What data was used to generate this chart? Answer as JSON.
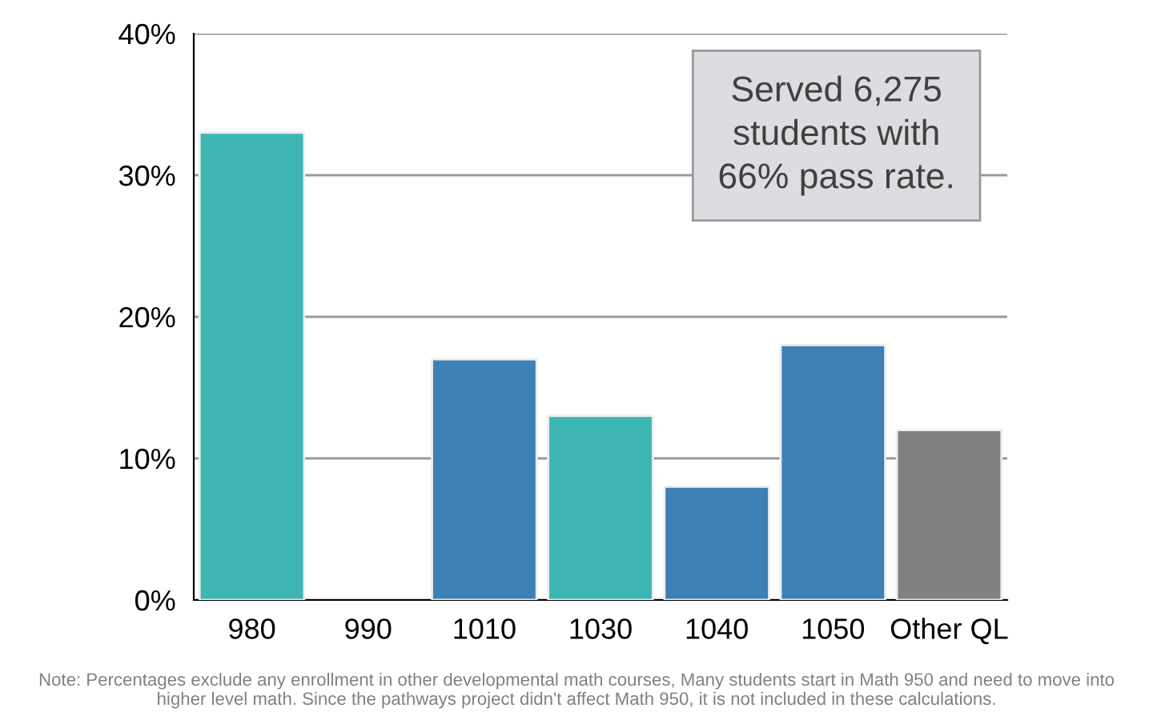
{
  "chart_data": {
    "type": "bar",
    "categories": [
      "980",
      "990",
      "1010",
      "1030",
      "1040",
      "1050",
      "Other QL"
    ],
    "values": [
      33,
      null,
      17,
      13,
      8,
      18,
      12
    ],
    "colors": [
      "#3db5b3",
      null,
      "#3d80b5",
      "#3db5b3",
      "#3d80b5",
      "#3d80b5",
      "#808080"
    ],
    "ylim": [
      0,
      40
    ],
    "yticks": [
      {
        "value": 0,
        "label": "0%"
      },
      {
        "value": 10,
        "label": "10%"
      },
      {
        "value": 20,
        "label": "20%"
      },
      {
        "value": 30,
        "label": "30%"
      },
      {
        "value": 40,
        "label": "40%"
      }
    ],
    "grid": "y",
    "annotations": [
      "Served 6,275\nstudents with\n66% pass rate.",
      "Note: Percentages exclude any enrollment in other developmental math courses, Many students start in Math 950 and need to move into\nhigher level math. Since the pathways project didn't affect Math 950, it is not included in these calculations."
    ]
  }
}
